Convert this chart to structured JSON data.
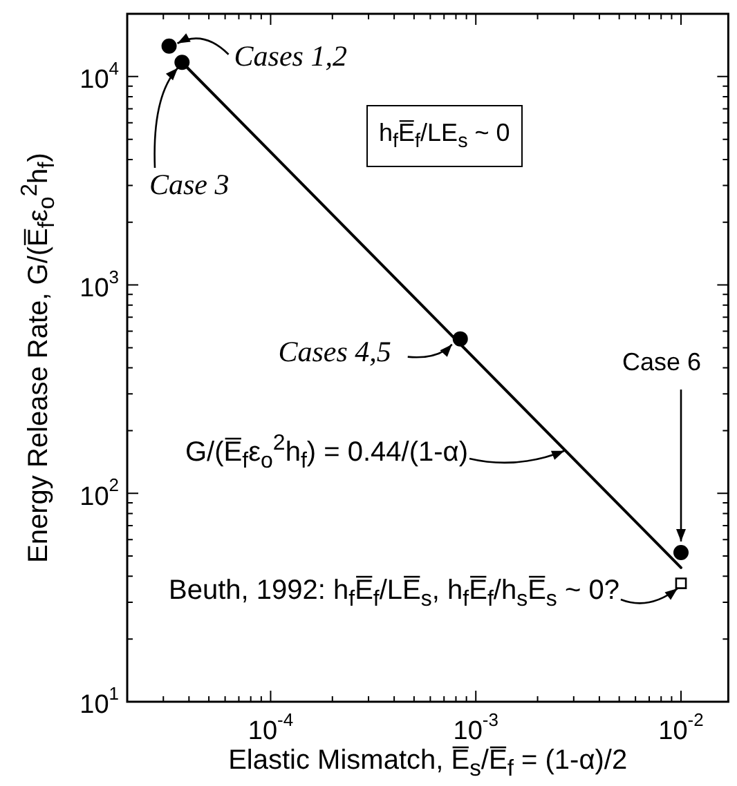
{
  "chart_data": {
    "type": "scatter",
    "log": "xy",
    "xlabel": "Elastic Mismatch, E̅$_{s}$/E̅$_{f}$ = (1-α)/2",
    "ylabel": "Energy Release Rate, G/(E̅$_{f}$ε$_{o}$$^{2}$h$_{f}$)",
    "xlim": [
      2e-05,
      0.017
    ],
    "ylim": [
      10,
      20000
    ],
    "xticks": [
      {
        "value": 3e-05,
        "label": null
      },
      {
        "value": 4e-05,
        "label": null
      },
      {
        "value": 5e-05,
        "label": null
      },
      {
        "value": 6e-05,
        "label": null
      },
      {
        "value": 7e-05,
        "label": null
      },
      {
        "value": 8e-05,
        "label": null
      },
      {
        "value": 9e-05,
        "label": null
      },
      {
        "value": 0.0001,
        "label": "10$^{-4}$"
      },
      {
        "value": 0.0002,
        "label": null
      },
      {
        "value": 0.0003,
        "label": null
      },
      {
        "value": 0.0004,
        "label": null
      },
      {
        "value": 0.0005,
        "label": null
      },
      {
        "value": 0.0006,
        "label": null
      },
      {
        "value": 0.0007,
        "label": null
      },
      {
        "value": 0.0008,
        "label": null
      },
      {
        "value": 0.0009,
        "label": null
      },
      {
        "value": 0.001,
        "label": "10$^{-3}$"
      },
      {
        "value": 0.002,
        "label": null
      },
      {
        "value": 0.003,
        "label": null
      },
      {
        "value": 0.004,
        "label": null
      },
      {
        "value": 0.005,
        "label": null
      },
      {
        "value": 0.006,
        "label": null
      },
      {
        "value": 0.007,
        "label": null
      },
      {
        "value": 0.008,
        "label": null
      },
      {
        "value": 0.009,
        "label": null
      },
      {
        "value": 0.01,
        "label": "10$^{-2}$"
      }
    ],
    "yticks": [
      {
        "value": 10,
        "label": "10$^{1}$"
      },
      {
        "value": 20,
        "label": null
      },
      {
        "value": 30,
        "label": null
      },
      {
        "value": 40,
        "label": null
      },
      {
        "value": 50,
        "label": null
      },
      {
        "value": 60,
        "label": null
      },
      {
        "value": 70,
        "label": null
      },
      {
        "value": 80,
        "label": null
      },
      {
        "value": 90,
        "label": null
      },
      {
        "value": 100,
        "label": "10$^{2}$"
      },
      {
        "value": 200,
        "label": null
      },
      {
        "value": 300,
        "label": null
      },
      {
        "value": 400,
        "label": null
      },
      {
        "value": 500,
        "label": null
      },
      {
        "value": 600,
        "label": null
      },
      {
        "value": 700,
        "label": null
      },
      {
        "value": 800,
        "label": null
      },
      {
        "value": 900,
        "label": null
      },
      {
        "value": 1000,
        "label": "10$^{3}$"
      },
      {
        "value": 2000,
        "label": null
      },
      {
        "value": 3000,
        "label": null
      },
      {
        "value": 4000,
        "label": null
      },
      {
        "value": 5000,
        "label": null
      },
      {
        "value": 6000,
        "label": null
      },
      {
        "value": 7000,
        "label": null
      },
      {
        "value": 8000,
        "label": null
      },
      {
        "value": 9000,
        "label": null
      },
      {
        "value": 10000,
        "label": "10$^{4}$"
      }
    ],
    "series": [
      {
        "type": "line",
        "color": "#000000",
        "marker": "none",
        "line_style": "solid",
        "x": [
          3.7e-05,
          0.01
        ],
        "values": [
          11700,
          44
        ]
      },
      {
        "type": "scatter",
        "color": "#000000",
        "marker": "circle",
        "x": [
          3.2e-05,
          3.7e-05,
          0.00084,
          0.01
        ],
        "values": [
          14000,
          11700,
          551,
          52
        ]
      },
      {
        "type": "scatter",
        "color": "#000000",
        "marker": "square",
        "x": [
          0.01
        ],
        "values": [
          37
        ]
      }
    ],
    "annotations": [
      {
        "text": "Cases 1,2",
        "x": 3.2e-05,
        "y": 14000
      },
      {
        "text": "Case 3",
        "x": 3.7e-05,
        "y": 11700
      },
      {
        "text": "Cases 4,5",
        "x": 0.00084,
        "y": 551
      },
      {
        "text": "Case 6",
        "x": 0.01,
        "y": 52
      },
      {
        "text": "G/(E̅$_{f}$ε$_{o}$$^{2}$h$_{f}$) = 0.44/(1-α)",
        "x": 0.0027,
        "y": 160
      },
      "Beuth, 1992: h$_{f}$E̅$_{f}$/LE̅$_{s}$, h$_{f}$E̅$_{f}$/h$_{s}$E̅$_{s}$ ~ 0?",
      "h$_{f}$E̅$_{f}$/LE$_{s}$ ~ 0"
    ]
  }
}
